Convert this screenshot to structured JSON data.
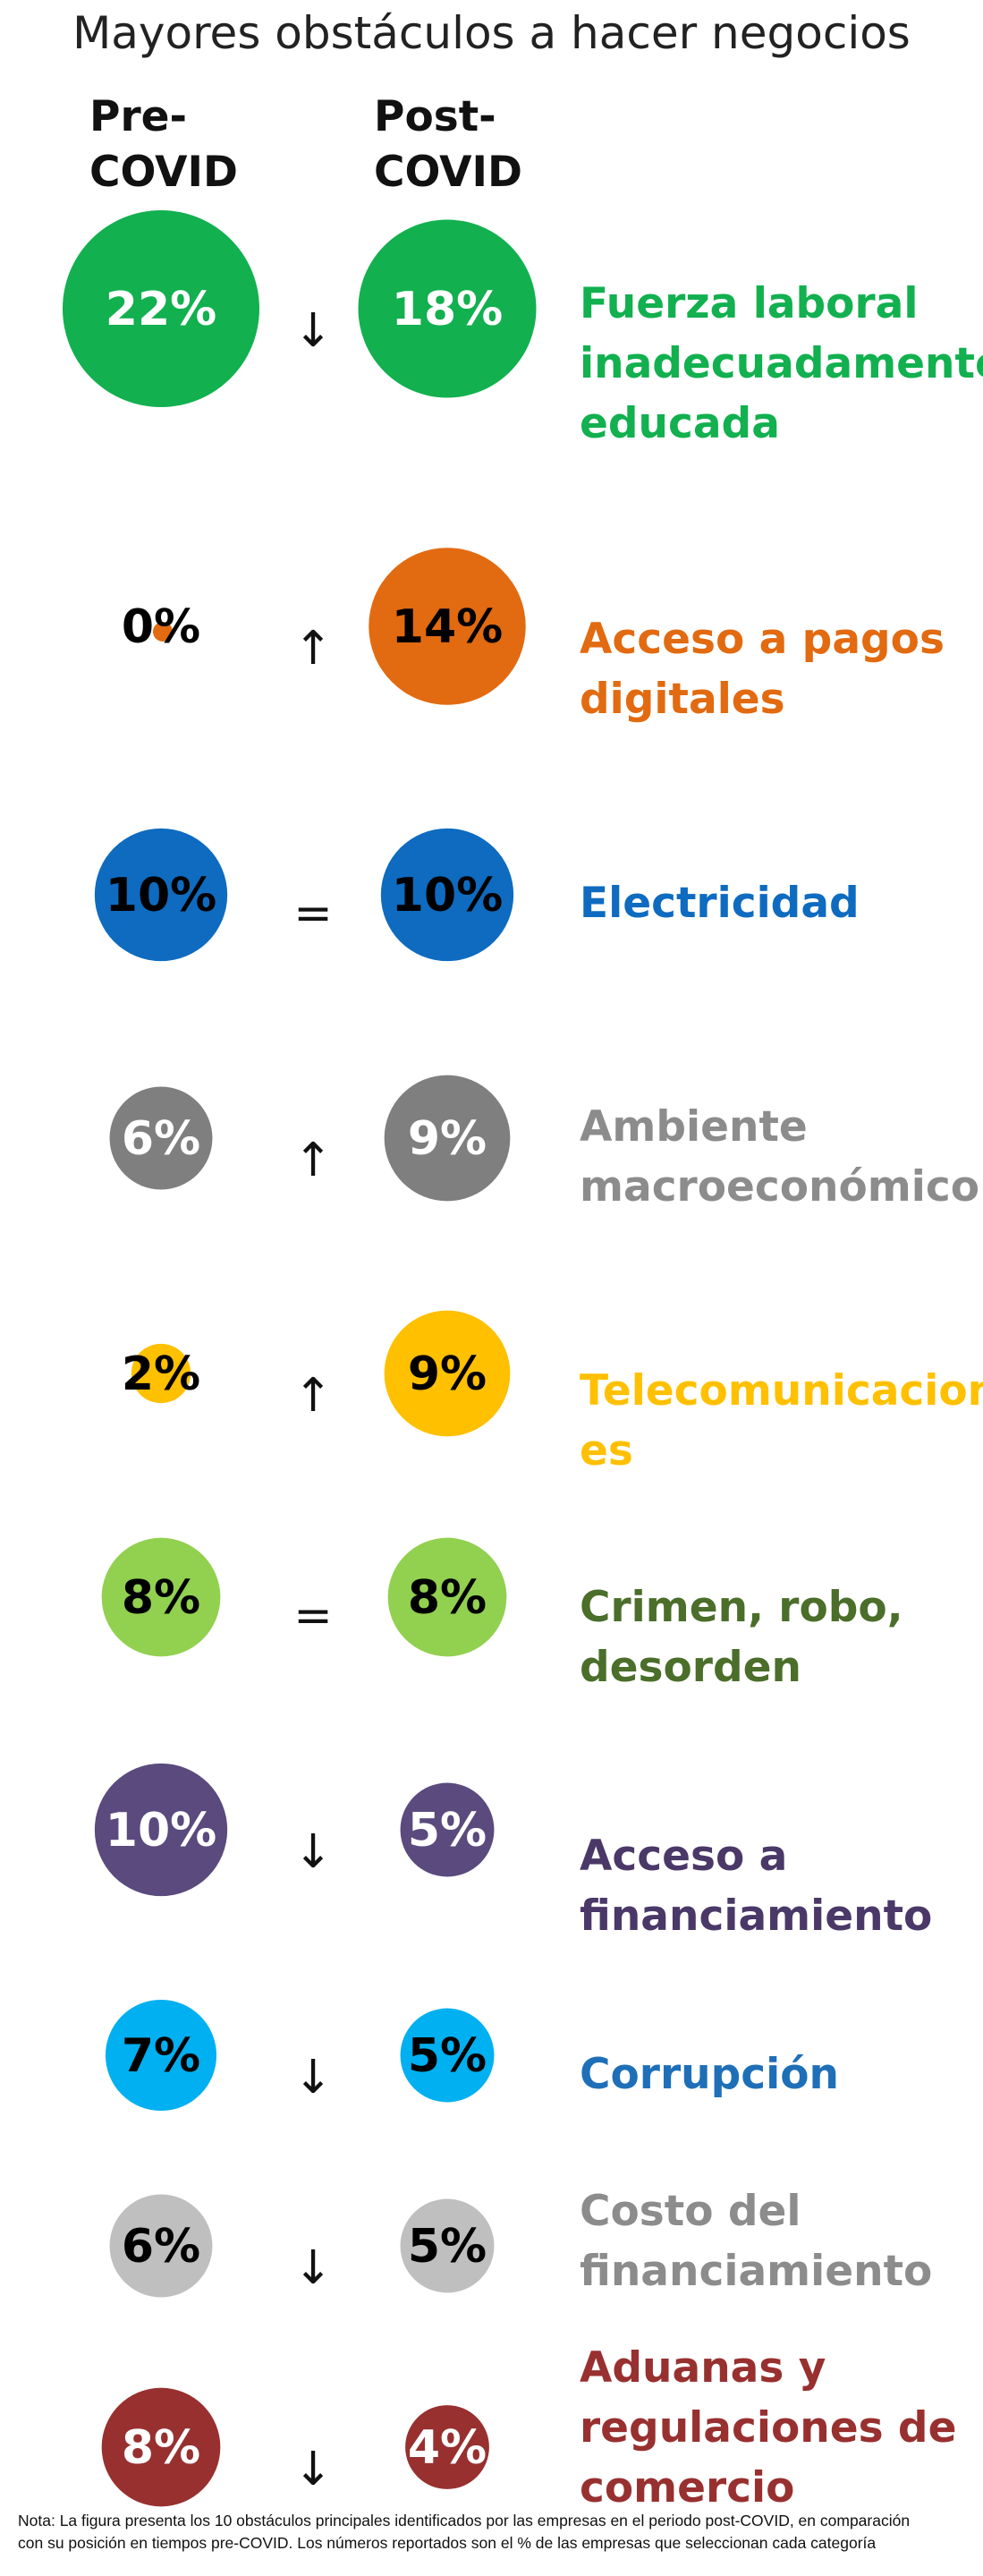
{
  "title": "Mayores obstáculos a hacer negocios",
  "column_headers": {
    "pre": [
      "Pre-",
      "COVID"
    ],
    "post": [
      "Post-",
      "COVID"
    ]
  },
  "note_lines": [
    "Nota: La figura presenta los 10 obstáculos principales identificados por las empresas en el periodo post-COVID, en comparación",
    "con su posición en tiempos pre-COVID. Los números reportados son el % de las empresas que seleccionan cada categoría"
  ],
  "chart_data": {
    "type": "bubble-comparison",
    "title": "Mayores obstáculos a hacer negocios",
    "series": [
      {
        "name": "Pre-COVID"
      },
      {
        "name": "Post-COVID"
      }
    ],
    "unit": "%",
    "rows": [
      {
        "category_lines": [
          "Fuerza laboral",
          "inadecuadamente",
          "educada"
        ],
        "pre": 22,
        "pre_label": "22%",
        "post": 18,
        "post_label": "18%",
        "change": "↓",
        "color": "#12B04F",
        "label_text_color": "#ffffff",
        "label_color": "#12B04F"
      },
      {
        "category_lines": [
          "Acceso a pagos",
          "digitales"
        ],
        "pre": 0,
        "pre_label": "0%",
        "post": 14,
        "post_label": "14%",
        "change": "↑",
        "color": "#E26A10",
        "label_text_color": "#000000",
        "label_color": "#E26A10"
      },
      {
        "category_lines": [
          "Electricidad"
        ],
        "pre": 10,
        "pre_label": "10%",
        "post": 10,
        "post_label": "10%",
        "change": "=",
        "color": "#0E6BC0",
        "label_text_color": "#000000",
        "label_color": "#0E6BC0"
      },
      {
        "category_lines": [
          "Ambiente",
          "macroeconómico"
        ],
        "pre": 6,
        "pre_label": "6%",
        "post": 9,
        "post_label": "9%",
        "change": "↑",
        "color": "#7F7F7F",
        "label_text_color": "#ffffff",
        "label_color": "#8C8C8C"
      },
      {
        "category_lines": [
          "Telecomunicacion",
          "es"
        ],
        "pre": 2,
        "pre_label": "2%",
        "post": 9,
        "post_label": "9%",
        "change": "↑",
        "color": "#FFC000",
        "label_text_color": "#000000",
        "label_color": "#FFC000"
      },
      {
        "category_lines": [
          "Crimen, robo,",
          "desorden"
        ],
        "pre": 8,
        "pre_label": "8%",
        "post": 8,
        "post_label": "8%",
        "change": "=",
        "color": "#92D050",
        "label_text_color": "#000000",
        "label_color": "#4B6E2A"
      },
      {
        "category_lines": [
          "Acceso a",
          "financiamiento"
        ],
        "pre": 10,
        "pre_label": "10%",
        "post": 5,
        "post_label": "5%",
        "change": "↓",
        "color": "#5A4A7E",
        "label_text_color": "#ffffff",
        "label_color": "#4A3868"
      },
      {
        "category_lines": [
          "Corrupción"
        ],
        "pre": 7,
        "pre_label": "7%",
        "post": 5,
        "post_label": "5%",
        "change": "↓",
        "color": "#00B0F0",
        "label_text_color": "#000000",
        "label_color": "#1F6FB8"
      },
      {
        "category_lines": [
          "Costo del",
          "financiamiento"
        ],
        "pre": 6,
        "pre_label": "6%",
        "post": 5,
        "post_label": "5%",
        "change": "↓",
        "color": "#BFBFBF",
        "label_text_color": "#000000",
        "label_color": "#8C8C8C"
      },
      {
        "category_lines": [
          "Aduanas y",
          "regulaciones de",
          "comercio"
        ],
        "pre": 8,
        "pre_label": "8%",
        "post": 4,
        "post_label": "4%",
        "change": "↓",
        "color": "#983030",
        "label_text_color": "#ffffff",
        "label_color": "#983030"
      }
    ]
  }
}
